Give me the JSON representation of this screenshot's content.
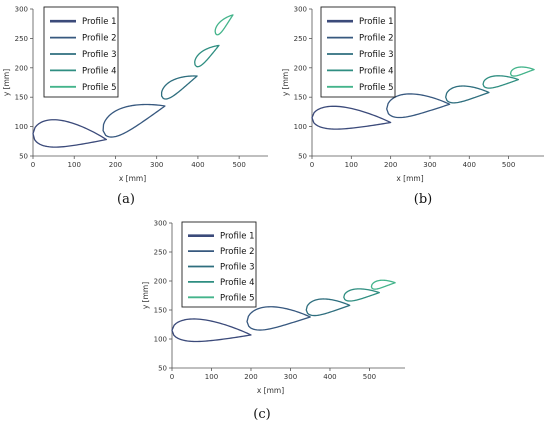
{
  "chart_data": [
    {
      "type": "line",
      "caption": "(a)",
      "xlabel": "x [mm]",
      "ylabel": "y [mm]",
      "xlim": [
        0,
        570
      ],
      "ylim": [
        50,
        300
      ],
      "xticks": [
        0,
        100,
        200,
        300,
        400,
        500
      ],
      "yticks": [
        50,
        100,
        150,
        200,
        250,
        300
      ],
      "legend_position": "top-left",
      "series": [
        {
          "name": "Profile 1",
          "color": "#3b4a7a",
          "shape": {
            "le": [
              0,
              88
            ],
            "te": [
              178,
              78
            ],
            "thickness": 24,
            "camber": 4
          }
        },
        {
          "name": "Profile 2",
          "color": "#37587f",
          "shape": {
            "le": [
              170,
              93
            ],
            "te": [
              320,
              135
            ],
            "thickness": 22,
            "camber": 4
          }
        },
        {
          "name": "Profile 3",
          "color": "#2e6e7e",
          "shape": {
            "le": [
              312,
              152
            ],
            "te": [
              398,
              186
            ],
            "thickness": 13,
            "camber": 3
          }
        },
        {
          "name": "Profile 4",
          "color": "#2f8e81",
          "shape": {
            "le": [
              393,
              205
            ],
            "te": [
              451,
              238
            ],
            "thickness": 10,
            "camber": 2
          }
        },
        {
          "name": "Profile 5",
          "color": "#44b48b",
          "shape": {
            "le": [
              443,
              258
            ],
            "te": [
              485,
              290
            ],
            "thickness": 8,
            "camber": 2
          }
        }
      ]
    },
    {
      "type": "line",
      "caption": "(b)",
      "xlabel": "x [mm]",
      "ylabel": "y [mm]",
      "xlim": [
        0,
        590
      ],
      "ylim": [
        50,
        300
      ],
      "xticks": [
        0,
        100,
        200,
        300,
        400,
        500
      ],
      "yticks": [
        50,
        100,
        150,
        200,
        250,
        300
      ],
      "legend_position": "top-left",
      "series": [
        {
          "name": "Profile 1",
          "color": "#3b4a7a",
          "shape": {
            "le": [
              0,
              115
            ],
            "te": [
              200,
              107
            ],
            "thickness": 20,
            "camber": 3
          }
        },
        {
          "name": "Profile 2",
          "color": "#37587f",
          "shape": {
            "le": [
              190,
              130
            ],
            "te": [
              350,
              138
            ],
            "thickness": 20,
            "camber": 4
          }
        },
        {
          "name": "Profile 3",
          "color": "#2e6e7e",
          "shape": {
            "le": [
              340,
              150
            ],
            "te": [
              450,
              158
            ],
            "thickness": 14,
            "camber": 3
          }
        },
        {
          "name": "Profile 4",
          "color": "#2f8e81",
          "shape": {
            "le": [
              435,
              172
            ],
            "te": [
              525,
              180
            ],
            "thickness": 10,
            "camber": 2
          }
        },
        {
          "name": "Profile 5",
          "color": "#44b48b",
          "shape": {
            "le": [
              505,
              190
            ],
            "te": [
              565,
              197
            ],
            "thickness": 7,
            "camber": 2
          }
        }
      ]
    },
    {
      "type": "line",
      "caption": "(c)",
      "xlabel": "x [mm]",
      "ylabel": "y [mm]",
      "xlim": [
        0,
        590
      ],
      "ylim": [
        50,
        300
      ],
      "xticks": [
        0,
        100,
        200,
        300,
        400,
        500
      ],
      "yticks": [
        50,
        100,
        150,
        200,
        250,
        300
      ],
      "legend_position": "top-left",
      "series": [
        {
          "name": "Profile 1",
          "color": "#3b4a7a",
          "shape": {
            "le": [
              0,
              115
            ],
            "te": [
              200,
              107
            ],
            "thickness": 20,
            "camber": 3
          }
        },
        {
          "name": "Profile 2",
          "color": "#37587f",
          "shape": {
            "le": [
              190,
              130
            ],
            "te": [
              350,
              138
            ],
            "thickness": 20,
            "camber": 4
          }
        },
        {
          "name": "Profile 3",
          "color": "#2e6e7e",
          "shape": {
            "le": [
              340,
              150
            ],
            "te": [
              450,
              158
            ],
            "thickness": 14,
            "camber": 3
          }
        },
        {
          "name": "Profile 4",
          "color": "#2f8e81",
          "shape": {
            "le": [
              435,
              172
            ],
            "te": [
              525,
              180
            ],
            "thickness": 10,
            "camber": 2
          }
        },
        {
          "name": "Profile 5",
          "color": "#44b48b",
          "shape": {
            "le": [
              505,
              190
            ],
            "te": [
              565,
              197
            ],
            "thickness": 7,
            "camber": 2
          }
        }
      ]
    }
  ]
}
